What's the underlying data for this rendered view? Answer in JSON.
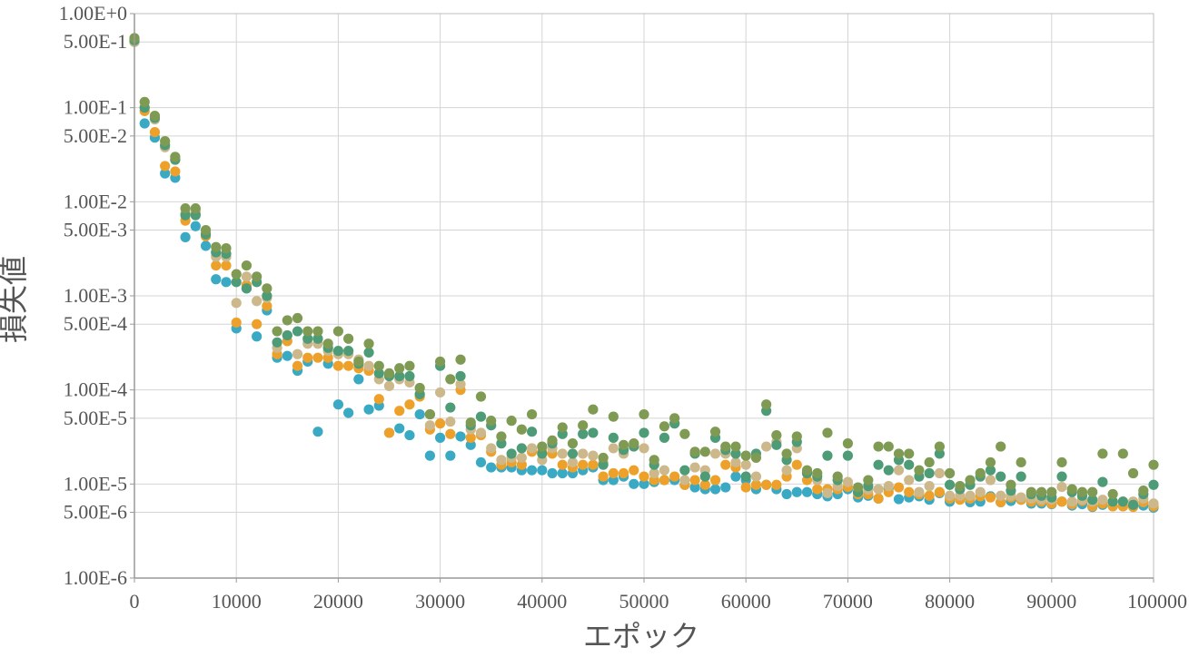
{
  "chart_data": {
    "type": "scatter",
    "xlabel": "エポック",
    "ylabel": "損失値",
    "xlim": [
      0,
      100000
    ],
    "ylim": [
      1e-06,
      1
    ],
    "y_scale": "log",
    "grid": true,
    "legend": "none",
    "x_ticks": [
      0,
      10000,
      20000,
      30000,
      40000,
      50000,
      60000,
      70000,
      80000,
      90000,
      100000
    ],
    "x_tick_labels": [
      "0",
      "10000",
      "20000",
      "30000",
      "40000",
      "50000",
      "60000",
      "70000",
      "80000",
      "90000",
      "100000"
    ],
    "y_ticks": [
      1.0,
      0.5,
      0.1,
      0.05,
      0.01,
      0.005,
      0.001,
      0.0005,
      0.0001,
      5e-05,
      1e-05,
      5e-06,
      1e-06
    ],
    "y_tick_labels": [
      "1.00E+0",
      "5.00E-1",
      "1.00E-1",
      "5.00E-2",
      "1.00E-2",
      "5.00E-3",
      "1.00E-3",
      "5.00E-4",
      "1.00E-4",
      "5.00E-5",
      "1.00E-5",
      "5.00E-6",
      "1.00E-6"
    ],
    "series": [
      {
        "color": "#3aa9c4",
        "x": [
          0,
          1000,
          2000,
          3000,
          4000,
          5000,
          6000,
          7000,
          8000,
          9000,
          10000,
          11000,
          12000,
          13000,
          14000,
          15000,
          16000,
          17000,
          18000,
          19000,
          20000,
          21000,
          22000,
          23000,
          24000,
          25000,
          26000,
          27000,
          28000,
          29000,
          30000,
          31000,
          32000,
          33000,
          34000,
          35000,
          36000,
          37000,
          38000,
          39000,
          40000,
          41000,
          42000,
          43000,
          44000,
          45000,
          46000,
          47000,
          48000,
          49000,
          50000,
          51000,
          52000,
          53000,
          54000,
          55000,
          56000,
          57000,
          58000,
          59000,
          60000,
          61000,
          62000,
          63000,
          64000,
          65000,
          66000,
          67000,
          68000,
          69000,
          70000,
          71000,
          72000,
          73000,
          74000,
          75000,
          76000,
          77000,
          78000,
          79000,
          80000,
          81000,
          82000,
          83000,
          84000,
          85000,
          86000,
          87000,
          88000,
          89000,
          90000,
          91000,
          92000,
          93000,
          94000,
          95000,
          96000,
          97000,
          98000,
          99000,
          100000
        ],
        "y": [
          0.5,
          0.068,
          0.048,
          0.02,
          0.018,
          0.0042,
          0.0055,
          0.0034,
          0.0015,
          0.0014,
          0.00045,
          0.0012,
          0.00037,
          0.0007,
          0.00022,
          0.00023,
          0.00016,
          0.0002,
          3.6e-05,
          0.00019,
          7e-05,
          5.7e-05,
          0.00013,
          6.2e-05,
          6.8e-05,
          3.5e-05,
          3.9e-05,
          3.3e-05,
          5.5e-05,
          2e-05,
          3.1e-05,
          2e-05,
          3.2e-05,
          2.6e-05,
          1.7e-05,
          1.5e-05,
          1.5e-05,
          1.5e-05,
          1.4e-05,
          1.4e-05,
          1.4e-05,
          1.3e-05,
          1.3e-05,
          1.3e-05,
          1.4e-05,
          1.5e-05,
          1.1e-05,
          1.1e-05,
          1.2e-05,
          1e-05,
          1e-05,
          1.05e-05,
          1.1e-05,
          1.1e-05,
          9.8e-06,
          9.2e-06,
          8.8e-06,
          8.8e-06,
          9.2e-06,
          1.2e-05,
          1.1e-05,
          8.8e-06,
          9.8e-06,
          8.8e-06,
          7.8e-06,
          8.2e-06,
          8.2e-06,
          7.8e-06,
          7.4e-06,
          7.8e-06,
          8.8e-06,
          7.2e-06,
          7.5e-06,
          7e-06,
          9e-06,
          6.9e-06,
          7.2e-06,
          7.4e-06,
          6.8e-06,
          8e-06,
          6.5e-06,
          7e-06,
          6.4e-06,
          6.5e-06,
          7.4e-06,
          6.4e-06,
          6.6e-06,
          6.8e-06,
          6.2e-06,
          6.2e-06,
          6.1e-06,
          6.5e-06,
          5.9e-06,
          6.1e-06,
          5.7e-06,
          6e-06,
          5.8e-06,
          5.8e-06,
          5.9e-06,
          5.9e-06,
          5.6e-06
        ]
      },
      {
        "color": "#eda12a",
        "x": [
          0,
          1000,
          2000,
          3000,
          4000,
          5000,
          6000,
          7000,
          8000,
          9000,
          10000,
          11000,
          12000,
          13000,
          14000,
          15000,
          16000,
          17000,
          18000,
          19000,
          20000,
          21000,
          22000,
          23000,
          24000,
          25000,
          26000,
          27000,
          28000,
          29000,
          30000,
          31000,
          32000,
          33000,
          34000,
          35000,
          36000,
          37000,
          38000,
          39000,
          40000,
          41000,
          42000,
          43000,
          44000,
          45000,
          46000,
          47000,
          48000,
          49000,
          50000,
          51000,
          52000,
          53000,
          54000,
          55000,
          56000,
          57000,
          58000,
          59000,
          60000,
          61000,
          62000,
          63000,
          64000,
          65000,
          66000,
          67000,
          68000,
          69000,
          70000,
          71000,
          72000,
          73000,
          74000,
          75000,
          76000,
          77000,
          78000,
          79000,
          80000,
          81000,
          82000,
          83000,
          84000,
          85000,
          86000,
          87000,
          88000,
          89000,
          90000,
          91000,
          92000,
          93000,
          94000,
          95000,
          96000,
          97000,
          98000,
          99000,
          100000
        ],
        "y": [
          0.5,
          0.092,
          0.055,
          0.024,
          0.021,
          0.0063,
          0.0075,
          0.0043,
          0.0021,
          0.0021,
          0.00052,
          0.0013,
          0.0005,
          0.00078,
          0.00024,
          0.00033,
          0.00018,
          0.00022,
          0.00022,
          0.00022,
          0.00018,
          0.00018,
          0.00017,
          0.00016,
          8e-05,
          3.5e-05,
          6e-05,
          7e-05,
          8.5e-05,
          3.8e-05,
          4.4e-05,
          3.4e-05,
          0.0001,
          3.1e-05,
          3.3e-05,
          2.2e-05,
          1.6e-05,
          1.7e-05,
          1.6e-05,
          2.2e-05,
          2.2e-05,
          2.1e-05,
          1.6e-05,
          1.5e-05,
          1.6e-05,
          1.6e-05,
          1.2e-05,
          1.3e-05,
          1.3e-05,
          1.4e-05,
          1.2e-05,
          1.1e-05,
          1.1e-05,
          1.2e-05,
          9.8e-06,
          1.1e-05,
          9.8e-06,
          1.1e-05,
          1.6e-05,
          1.5e-05,
          9.2e-06,
          9.8e-06,
          9.8e-06,
          9.8e-06,
          1.2e-05,
          1.6e-05,
          1.1e-05,
          8.8e-06,
          8.8e-06,
          8.8e-06,
          9.3e-06,
          7.8e-06,
          7.8e-06,
          7e-06,
          8.2e-06,
          9.2e-06,
          8.2e-06,
          7.8e-06,
          7.5e-06,
          8.2e-06,
          7e-06,
          6.8e-06,
          7e-06,
          7.4e-06,
          7.2e-06,
          6.4e-06,
          7.2e-06,
          6.8e-06,
          6.5e-06,
          6.5e-06,
          6.2e-06,
          6.5e-06,
          6.1e-06,
          6.6e-06,
          5.8e-06,
          6.2e-06,
          5.8e-06,
          5.8e-06,
          5.7e-06,
          6.4e-06,
          5.8e-06
        ]
      },
      {
        "color": "#ccb88a",
        "x": [
          0,
          1000,
          2000,
          3000,
          4000,
          5000,
          6000,
          7000,
          8000,
          9000,
          10000,
          11000,
          12000,
          13000,
          14000,
          15000,
          16000,
          17000,
          18000,
          19000,
          20000,
          21000,
          22000,
          23000,
          24000,
          25000,
          26000,
          27000,
          28000,
          29000,
          30000,
          31000,
          32000,
          33000,
          34000,
          35000,
          36000,
          37000,
          38000,
          39000,
          40000,
          41000,
          42000,
          43000,
          44000,
          45000,
          46000,
          47000,
          48000,
          49000,
          50000,
          51000,
          52000,
          53000,
          54000,
          55000,
          56000,
          57000,
          58000,
          59000,
          60000,
          61000,
          62000,
          63000,
          64000,
          65000,
          66000,
          67000,
          68000,
          69000,
          70000,
          71000,
          72000,
          73000,
          74000,
          75000,
          76000,
          77000,
          78000,
          79000,
          80000,
          81000,
          82000,
          83000,
          84000,
          85000,
          86000,
          87000,
          88000,
          89000,
          90000,
          91000,
          92000,
          93000,
          94000,
          95000,
          96000,
          97000,
          98000,
          99000,
          100000
        ],
        "y": [
          0.5,
          0.1,
          0.075,
          0.038,
          0.028,
          0.0075,
          0.008,
          0.0046,
          0.0026,
          0.0026,
          0.00084,
          0.0016,
          0.00088,
          0.00095,
          0.00028,
          0.00038,
          0.00024,
          0.00031,
          0.00031,
          0.00026,
          0.00024,
          0.00024,
          0.00021,
          0.00018,
          0.00013,
          0.00011,
          0.00013,
          0.00012,
          9e-05,
          4.2e-05,
          9.4e-05,
          4.6e-05,
          0.000115,
          3.8e-05,
          3.5e-05,
          2.4e-05,
          1.8e-05,
          1.9e-05,
          1.9e-05,
          2.4e-05,
          1.8e-05,
          2.4e-05,
          2.1e-05,
          1.7e-05,
          2.1e-05,
          2e-05,
          1.7e-05,
          2.4e-05,
          2.1e-05,
          2.6e-05,
          2.4e-05,
          1.3e-05,
          1.4e-05,
          4.4e-05,
          1.1e-05,
          1.5e-05,
          1.4e-05,
          2.1e-05,
          2.1e-05,
          1.7e-05,
          1.6e-05,
          1.2e-05,
          2.5e-05,
          2.8e-05,
          1.4e-05,
          2.4e-05,
          1.3e-05,
          1.1e-05,
          8e-06,
          9.5e-06,
          1.05e-05,
          8.2e-06,
          8.7e-06,
          8.8e-06,
          9.5e-06,
          1.4e-05,
          1.1e-05,
          8.2e-06,
          9.5e-06,
          1.3e-05,
          7.5e-06,
          7.5e-06,
          7.5e-06,
          8.2e-06,
          1.1e-05,
          7.5e-06,
          7.5e-06,
          7.2e-06,
          7e-06,
          6.8e-06,
          6.8e-06,
          9.3e-06,
          6.5e-06,
          6.8e-06,
          6.5e-06,
          6.8e-06,
          6.5e-06,
          6.5e-06,
          6.5e-06,
          7e-06,
          6.2e-06
        ]
      },
      {
        "color": "#4e9b77",
        "x": [
          0,
          1000,
          2000,
          3000,
          4000,
          5000,
          6000,
          7000,
          8000,
          9000,
          10000,
          11000,
          12000,
          13000,
          14000,
          15000,
          16000,
          17000,
          18000,
          19000,
          20000,
          21000,
          22000,
          23000,
          24000,
          25000,
          26000,
          27000,
          28000,
          29000,
          30000,
          31000,
          32000,
          33000,
          34000,
          35000,
          36000,
          37000,
          38000,
          39000,
          40000,
          41000,
          42000,
          43000,
          44000,
          45000,
          46000,
          47000,
          48000,
          49000,
          50000,
          51000,
          52000,
          53000,
          54000,
          55000,
          56000,
          57000,
          58000,
          59000,
          60000,
          61000,
          62000,
          63000,
          64000,
          65000,
          66000,
          67000,
          68000,
          69000,
          70000,
          71000,
          72000,
          73000,
          74000,
          75000,
          76000,
          77000,
          78000,
          79000,
          80000,
          81000,
          82000,
          83000,
          84000,
          85000,
          86000,
          87000,
          88000,
          89000,
          90000,
          91000,
          92000,
          93000,
          94000,
          95000,
          96000,
          97000,
          98000,
          99000,
          100000
        ],
        "y": [
          0.52,
          0.1,
          0.078,
          0.04,
          0.028,
          0.0072,
          0.0072,
          0.0045,
          0.0029,
          0.0028,
          0.0014,
          0.0012,
          0.0014,
          0.001,
          0.00032,
          0.00038,
          0.00042,
          0.00035,
          0.00035,
          0.00028,
          0.00026,
          0.00026,
          0.00019,
          0.00025,
          0.00015,
          0.00014,
          0.00014,
          0.00014,
          9e-05,
          5.5e-05,
          0.00018,
          6.5e-05,
          0.00014,
          4.2e-05,
          5.2e-05,
          4.2e-05,
          2.7e-05,
          2.1e-05,
          2.4e-05,
          3.6e-05,
          2.1e-05,
          2.7e-05,
          3.4e-05,
          2.1e-05,
          3.4e-05,
          3.5e-05,
          1.6e-05,
          3.1e-05,
          2.3e-05,
          2.5e-05,
          3.5e-05,
          1.6e-05,
          3.1e-05,
          4.4e-05,
          1.4e-05,
          2.1e-05,
          1.2e-05,
          3.1e-05,
          2.3e-05,
          2.1e-05,
          1.2e-05,
          2.1e-05,
          6e-05,
          2.6e-05,
          1.8e-05,
          2.8e-05,
          1.3e-05,
          1.2e-05,
          2e-05,
          1.1e-05,
          2e-05,
          8.2e-06,
          9.5e-06,
          1.6e-05,
          1.4e-05,
          1.8e-05,
          1.6e-05,
          1.2e-05,
          1.3e-05,
          2.1e-05,
          9.8e-06,
          8.8e-06,
          9.8e-06,
          1.2e-05,
          1.4e-05,
          1.2e-05,
          8.5e-06,
          1.2e-05,
          7.8e-06,
          7.5e-06,
          7.2e-06,
          1.2e-05,
          8.2e-06,
          7.5e-06,
          6.8e-06,
          1.05e-05,
          6.5e-06,
          6.5e-06,
          6e-06,
          7.8e-06,
          9.8e-06
        ]
      },
      {
        "color": "#7f9a52",
        "x": [
          0,
          1000,
          2000,
          3000,
          4000,
          5000,
          6000,
          7000,
          8000,
          9000,
          10000,
          11000,
          12000,
          13000,
          14000,
          15000,
          16000,
          17000,
          18000,
          19000,
          20000,
          21000,
          22000,
          23000,
          24000,
          25000,
          26000,
          27000,
          28000,
          29000,
          30000,
          31000,
          32000,
          33000,
          34000,
          35000,
          36000,
          37000,
          38000,
          39000,
          40000,
          41000,
          42000,
          43000,
          44000,
          45000,
          46000,
          47000,
          48000,
          49000,
          50000,
          51000,
          52000,
          53000,
          54000,
          55000,
          56000,
          57000,
          58000,
          59000,
          60000,
          61000,
          62000,
          63000,
          64000,
          65000,
          66000,
          67000,
          68000,
          69000,
          70000,
          71000,
          72000,
          73000,
          74000,
          75000,
          76000,
          77000,
          78000,
          79000,
          80000,
          81000,
          82000,
          83000,
          84000,
          85000,
          86000,
          87000,
          88000,
          89000,
          90000,
          91000,
          92000,
          93000,
          94000,
          95000,
          96000,
          97000,
          98000,
          99000,
          100000
        ],
        "y": [
          0.55,
          0.115,
          0.082,
          0.044,
          0.03,
          0.0085,
          0.0085,
          0.005,
          0.0033,
          0.0032,
          0.0017,
          0.0021,
          0.0016,
          0.0012,
          0.00042,
          0.00055,
          0.00058,
          0.00042,
          0.00042,
          0.00031,
          0.00042,
          0.00035,
          0.0002,
          0.00031,
          0.00018,
          0.00015,
          0.00017,
          0.00018,
          0.000105,
          5.5e-05,
          0.0002,
          0.00013,
          0.00021,
          4.5e-05,
          8.5e-05,
          4.7e-05,
          3.2e-05,
          4.7e-05,
          3.8e-05,
          5.5e-05,
          2.5e-05,
          2.9e-05,
          4e-05,
          2.7e-05,
          4.2e-05,
          6.2e-05,
          1.9e-05,
          5.2e-05,
          2.6e-05,
          2.7e-05,
          5.5e-05,
          1.8e-05,
          4.1e-05,
          5e-05,
          3.4e-05,
          2.2e-05,
          2.2e-05,
          3.6e-05,
          2.5e-05,
          2.5e-05,
          2e-05,
          1.9e-05,
          7e-05,
          3.3e-05,
          2.1e-05,
          3.2e-05,
          1.4e-05,
          1.3e-05,
          3.5e-05,
          1.2e-05,
          2.7e-05,
          9.2e-06,
          1.1e-05,
          2.5e-05,
          2.5e-05,
          2.1e-05,
          2.1e-05,
          1.4e-05,
          1.7e-05,
          2.5e-05,
          1.3e-05,
          9.5e-06,
          1.1e-05,
          1.3e-05,
          1.7e-05,
          2.5e-05,
          9.8e-06,
          1.7e-05,
          8.2e-06,
          8.2e-06,
          8.2e-06,
          1.7e-05,
          8.8e-06,
          8.2e-06,
          8.2e-06,
          2.1e-05,
          7.8e-06,
          2.1e-05,
          1.3e-05,
          8.5e-06,
          1.6e-05
        ]
      }
    ]
  }
}
